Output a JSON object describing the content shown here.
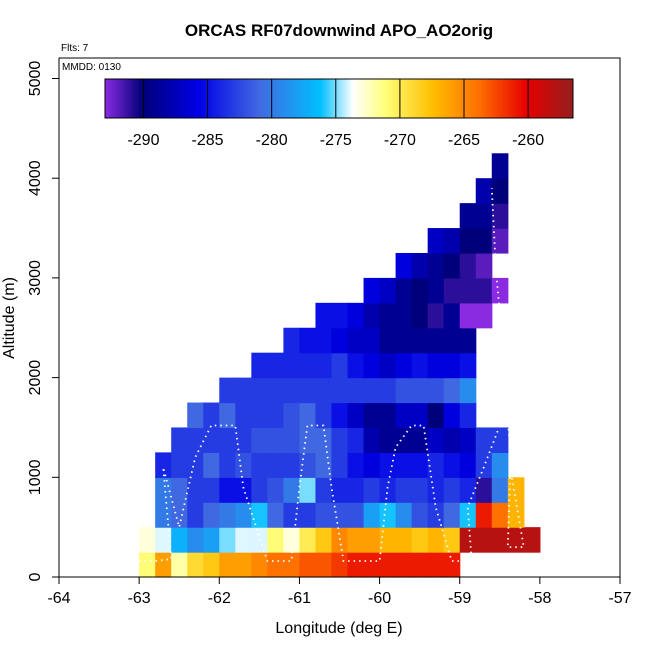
{
  "chart_data": {
    "type": "heatmap",
    "title": "ORCAS RF07downwind APO_AO2orig",
    "xlabel": "Longitude (deg E)",
    "ylabel": "Altitude (m)",
    "xlim": [
      -64,
      -57
    ],
    "ylim": [
      0,
      5200
    ],
    "xticks": [
      -64,
      -63,
      -62,
      -61,
      -60,
      -59,
      -58,
      -57
    ],
    "yticks": [
      0,
      1000,
      2000,
      3000,
      4000,
      5000
    ],
    "annotations": [
      "Flts: 7",
      "MMDD: 0130"
    ],
    "colorbar": {
      "range": [
        -293,
        -256.5
      ],
      "ticks": [
        -290,
        -285,
        -280,
        -275,
        -270,
        -265,
        -260
      ],
      "boundaries": [
        -290,
        -285,
        -280,
        -275,
        -270,
        -265,
        -260
      ]
    },
    "cell_size": {
      "lon": 0.2,
      "alt": 250
    },
    "lon_starts": [
      -63.0,
      -62.8,
      -62.6,
      -62.4,
      -62.2,
      -62.0,
      -61.8,
      -61.6,
      -61.4,
      -61.2,
      -61.0,
      -60.8,
      -60.6,
      -60.4,
      -60.2,
      -60.0,
      -59.8,
      -59.6,
      -59.4,
      -59.2,
      -59.0,
      -58.8,
      -58.6,
      -58.4,
      -58.2
    ],
    "rows": [
      {
        "alt": 0,
        "start": -63.0,
        "values": [
          -271,
          -266,
          -272,
          -269,
          -268,
          -266,
          -266,
          -265,
          -264,
          -264,
          -263,
          -263,
          -262,
          -261,
          -261,
          -261,
          -261,
          -261,
          -261,
          -261
        ]
      },
      {
        "alt": 250,
        "start": -63.0,
        "values": [
          -273,
          -274,
          -277,
          -279,
          -278,
          -275,
          -274,
          -274,
          -271,
          -273,
          -270,
          -268,
          -265,
          -266,
          -266,
          -267,
          -267,
          -268,
          -267,
          -268,
          -258,
          -258,
          -258,
          -258,
          -258
        ]
      },
      {
        "alt": 500,
        "start": -63.0,
        "values": [
          null,
          -280,
          -281,
          -283,
          -281,
          -280,
          -279,
          -276,
          -281,
          -283,
          -283,
          -282,
          -282,
          -282,
          -278,
          -276,
          -279,
          -282,
          -283,
          -281,
          -276,
          -261,
          -264,
          -267
        ]
      },
      {
        "alt": 750,
        "start": -62.8,
        "values": [
          -280,
          -281,
          -283,
          -283,
          -285,
          -285,
          -283,
          -282,
          -280,
          -275,
          -283,
          -284,
          -284,
          -283,
          -284,
          -283,
          -283,
          -284,
          -283,
          -284,
          -291,
          -280,
          -267
        ]
      },
      {
        "alt": 1000,
        "start": -62.8,
        "values": [
          -284,
          -283,
          -283,
          -281,
          -283,
          -282,
          -283,
          -283,
          -283,
          -282,
          -281,
          -283,
          -285,
          -286,
          -285,
          -285,
          -285,
          -284,
          -285,
          -286,
          -283,
          -279
        ]
      },
      {
        "alt": 1250,
        "start": -62.6,
        "values": [
          -283,
          -283,
          -283,
          -283,
          -283,
          -282,
          -282,
          -282,
          -281,
          -281,
          -283,
          -284,
          -288,
          -289,
          -289,
          -289,
          -287,
          -288,
          -287,
          -283,
          -283
        ]
      },
      {
        "alt": 1500,
        "start": -62.4,
        "values": [
          -281,
          -283,
          -281,
          -283,
          -283,
          -283,
          -282,
          -281,
          -283,
          -285,
          -287,
          -289,
          -289,
          -287,
          -287,
          -290,
          -286,
          -284
        ]
      },
      {
        "alt": 1750,
        "start": -62.0,
        "values": [
          -283,
          -283,
          -283,
          -283,
          -283,
          -283,
          -283,
          -283,
          -283,
          -283,
          -283,
          -282,
          -282,
          -282,
          -281,
          -279
        ]
      },
      {
        "alt": 2000,
        "start": -61.6,
        "values": [
          -284,
          -284,
          -284,
          -284,
          -284,
          -283,
          -285,
          -286,
          -287,
          -286,
          -285,
          -286,
          -286,
          -285
        ]
      },
      {
        "alt": 2250,
        "start": -61.2,
        "values": [
          -284,
          -285,
          -285,
          -286,
          -287,
          -287,
          -289,
          -289,
          -289,
          -289,
          -289,
          -289
        ]
      },
      {
        "alt": 2500,
        "start": -60.8,
        "values": [
          -285,
          -285,
          -286,
          -288,
          -289,
          -289,
          -290,
          -291,
          -289,
          -293,
          -294
        ]
      },
      {
        "alt": 2750,
        "start": -60.2,
        "values": [
          -286,
          -287,
          -289,
          -290,
          -289,
          -291,
          -291,
          -291,
          -293
        ]
      },
      {
        "alt": 3000,
        "start": -59.8,
        "values": [
          -286,
          -288,
          -289,
          -290,
          -291,
          -292
        ]
      },
      {
        "alt": 3250,
        "start": -59.4,
        "values": [
          -287,
          -288,
          -290,
          -290,
          -292
        ]
      },
      {
        "alt": 3500,
        "start": -59.0,
        "values": [
          -289,
          -289,
          -291
        ]
      },
      {
        "alt": 3750,
        "start": -58.8,
        "values": [
          -288,
          -290
        ]
      },
      {
        "alt": 4000,
        "start": -58.6,
        "values": [
          -289
        ]
      }
    ],
    "track": [
      [
        -63.0,
        160
      ],
      [
        -62.8,
        160
      ],
      [
        -62.6,
        180
      ],
      [
        -62.7,
        1100
      ],
      [
        -62.5,
        500
      ],
      [
        -62.3,
        1200
      ],
      [
        -62.1,
        1520
      ],
      [
        -61.8,
        1520
      ],
      [
        -61.7,
        900
      ],
      [
        -61.5,
        400
      ],
      [
        -61.4,
        160
      ],
      [
        -61.1,
        160
      ],
      [
        -61.0,
        900
      ],
      [
        -60.9,
        1520
      ],
      [
        -60.7,
        1520
      ],
      [
        -60.6,
        900
      ],
      [
        -60.45,
        160
      ],
      [
        -60.0,
        160
      ],
      [
        -59.9,
        900
      ],
      [
        -59.8,
        1300
      ],
      [
        -59.6,
        1520
      ],
      [
        -59.45,
        1520
      ],
      [
        -59.3,
        700
      ],
      [
        -59.1,
        160
      ],
      [
        -58.85,
        160
      ],
      [
        -58.9,
        700
      ],
      [
        -58.7,
        1100
      ],
      [
        -58.5,
        1520
      ],
      [
        -58.35,
        1520
      ],
      [
        -58.4,
        300
      ],
      [
        -58.2,
        300
      ],
      [
        -58.35,
        1000
      ],
      [
        -58.45,
        2200
      ],
      [
        -58.55,
        3100
      ],
      [
        -58.6,
        3900
      ]
    ]
  }
}
